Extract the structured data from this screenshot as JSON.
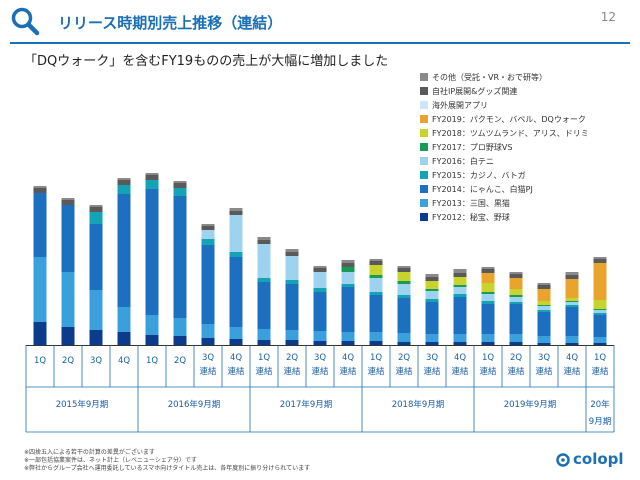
{
  "header": {
    "title": "リリース時期別売上推移（連結）",
    "page_number": "12"
  },
  "subtitle": "「DQウォーク」を含むFY19ものの売上が大幅に増加しました",
  "colors": {
    "accent": "#1a6fb5",
    "series": [
      "#0b3c8c",
      "#39a0dc",
      "#1d6fbf",
      "#13a3b5",
      "#9ed3f0",
      "#189a58",
      "#c8d42e",
      "#e8a42c",
      "#cfe6f6",
      "#5a5a5a",
      "#8a8a8a"
    ]
  },
  "footnotes": [
    "※四捨五入による若干の計算の差異がございます",
    "※一部包括協業案件は、ネット計上（レベニューシェア分）です",
    "※弊社からグループ会社へ運用委託しているスマホ向けタイトル売上は、各年度別に振り分けられています"
  ],
  "logo": {
    "text": "colopl"
  },
  "chart_data": {
    "type": "bar",
    "stacked": true,
    "categories": [
      "1Q",
      "2Q",
      "3Q",
      "4Q",
      "1Q",
      "2Q",
      "3Q\n連結",
      "4Q\n連結",
      "1Q\n連結",
      "2Q\n連結",
      "3Q\n連結",
      "4Q\n連結",
      "1Q\n連結",
      "2Q\n連結",
      "3Q\n連結",
      "4Q\n連結",
      "1Q\n連結",
      "2Q\n連結",
      "3Q\n連結",
      "4Q\n連結",
      "1Q\n連結"
    ],
    "groups": [
      {
        "label": "2015年9月期",
        "start": 0,
        "end": 3
      },
      {
        "label": "2016年9月期",
        "start": 4,
        "end": 7
      },
      {
        "label": "2017年9月期",
        "start": 8,
        "end": 11
      },
      {
        "label": "2018年9月期",
        "start": 12,
        "end": 15
      },
      {
        "label": "2019年9月期",
        "start": 16,
        "end": 19
      },
      {
        "label": "20年\n9月期",
        "start": 20,
        "end": 20
      }
    ],
    "ylim": [
      0,
      220
    ],
    "series": [
      {
        "name": "FY2012：秘宝、野球",
        "values": [
          23,
          18,
          15,
          13,
          10,
          9,
          7,
          6,
          5,
          5,
          4,
          4,
          4,
          3,
          3,
          3,
          3,
          3,
          2,
          2,
          2
        ]
      },
      {
        "name": "FY2013：三国、黒猫",
        "values": [
          65,
          55,
          40,
          25,
          20,
          18,
          14,
          12,
          11,
          10,
          10,
          9,
          9,
          9,
          8,
          8,
          8,
          8,
          7,
          7,
          6
        ]
      },
      {
        "name": "FY2014：にゃんこ、白猫PJ",
        "values": [
          64,
          67,
          66,
          113,
          126,
          122,
          79,
          70,
          47,
          46,
          39,
          45,
          37,
          35,
          32,
          37,
          30,
          30,
          24,
          29,
          22
        ]
      },
      {
        "name": "FY2015：カジノ、バトガ",
        "values": [
          0,
          0,
          12,
          9,
          9,
          8,
          6,
          5,
          4,
          4,
          4,
          3,
          3,
          3,
          3,
          3,
          3,
          2,
          2,
          2,
          2
        ]
      },
      {
        "name": "FY2016：白テニ",
        "values": [
          0,
          0,
          0,
          0,
          0,
          0,
          9,
          37,
          34,
          24,
          16,
          12,
          14,
          11,
          8,
          7,
          7,
          5,
          4,
          3,
          3
        ]
      },
      {
        "name": "FY2017：プロ野球VS",
        "values": [
          0,
          0,
          0,
          0,
          0,
          0,
          0,
          0,
          0,
          0,
          0,
          5,
          3,
          3,
          2,
          2,
          2,
          2,
          1,
          1,
          1
        ]
      },
      {
        "name": "FY2018：ツムツムランド、アリス、ドリミ",
        "values": [
          0,
          0,
          0,
          0,
          0,
          0,
          0,
          0,
          0,
          0,
          0,
          0,
          10,
          9,
          8,
          8,
          9,
          6,
          4,
          3,
          9
        ]
      },
      {
        "name": "FY2019：パクモン、バベル、DQウォーク",
        "values": [
          0,
          0,
          0,
          0,
          0,
          0,
          0,
          0,
          0,
          0,
          0,
          0,
          0,
          0,
          0,
          0,
          10,
          11,
          12,
          19,
          37
        ]
      },
      {
        "name": "海外展開アプリ",
        "values": [
          0,
          0,
          0,
          0,
          0,
          0,
          0,
          0,
          0,
          0,
          0,
          0,
          0,
          0,
          0,
          0,
          0,
          0,
          0,
          0,
          0
        ]
      },
      {
        "name": "自社IP展開&グッズ関連",
        "values": [
          5,
          5,
          5,
          5,
          5,
          5,
          4,
          4,
          4,
          4,
          4,
          4,
          4,
          4,
          4,
          4,
          4,
          4,
          4,
          4,
          4
        ]
      },
      {
        "name": "その他（受託・VR・おで研等）",
        "values": [
          2,
          2,
          2,
          2,
          2,
          2,
          2,
          3,
          3,
          3,
          2,
          3,
          2,
          2,
          3,
          4,
          2,
          2,
          2,
          3,
          2
        ]
      }
    ]
  }
}
